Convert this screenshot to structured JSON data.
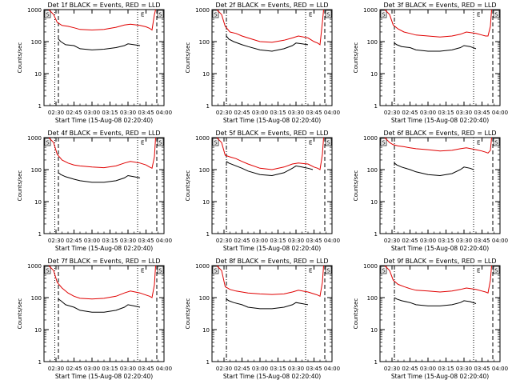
{
  "figure": {
    "xlabel": "Start Time (15-Aug-08 02:20:40)",
    "ylabel": "Counts/sec",
    "x_ticks": [
      "02:30",
      "02:45",
      "03:00",
      "03:15",
      "03:30",
      "03:45",
      "04:00"
    ],
    "x_tick_minutes": [
      10,
      25,
      40,
      55,
      70,
      85,
      100
    ],
    "x_range_minutes": [
      0,
      100
    ],
    "y_ticks": [
      "1",
      "10",
      "100",
      "1000"
    ],
    "y_range": [
      1,
      1000
    ],
    "y_scale": "log",
    "colors": {
      "events": "#000000",
      "lld": "#e00000",
      "axes": "#000000"
    },
    "marker_labels": [
      "S",
      "E",
      "S"
    ]
  },
  "chart_data": [
    {
      "type": "line",
      "title": "Det 1f BLACK = Events, RED = LLD",
      "markers": {
        "dotted": [
          9,
          78
        ],
        "dashed": [
          12,
          94
        ],
        "dashdot": []
      },
      "series": [
        {
          "name": "Events",
          "x": [
            12,
            14,
            18,
            25,
            30,
            40,
            50,
            60,
            67,
            70,
            75,
            80
          ],
          "y": [
            120,
            100,
            80,
            75,
            60,
            55,
            58,
            65,
            75,
            85,
            80,
            75
          ]
        },
        {
          "name": "LLD",
          "x": [
            4,
            8,
            11,
            15,
            20,
            25,
            30,
            40,
            50,
            60,
            67,
            72,
            80,
            85,
            88,
            90,
            92,
            93
          ],
          "y": [
            1000,
            700,
            400,
            320,
            300,
            270,
            240,
            230,
            240,
            280,
            330,
            350,
            320,
            290,
            260,
            230,
            700,
            1000
          ]
        }
      ]
    },
    {
      "type": "line",
      "title": "Det 2f BLACK = Events, RED = LLD",
      "markers": {
        "dotted": [
          78
        ],
        "dashed": [
          94
        ],
        "dashdot": [
          12
        ]
      },
      "series": [
        {
          "name": "Events",
          "x": [
            12,
            14,
            18,
            25,
            30,
            40,
            50,
            60,
            67,
            70,
            75,
            80
          ],
          "y": [
            150,
            120,
            100,
            80,
            70,
            55,
            50,
            60,
            75,
            90,
            85,
            80
          ]
        },
        {
          "name": "LLD",
          "x": [
            4,
            8,
            11,
            15,
            20,
            25,
            30,
            40,
            50,
            60,
            67,
            72,
            80,
            85,
            88,
            90,
            92,
            93
          ],
          "y": [
            1000,
            700,
            300,
            200,
            180,
            150,
            130,
            100,
            95,
            110,
            130,
            150,
            130,
            100,
            90,
            80,
            400,
            1000
          ]
        }
      ]
    },
    {
      "type": "line",
      "title": "Det 3f BLACK = Events, RED = LLD",
      "markers": {
        "dotted": [
          78
        ],
        "dashed": [
          94
        ],
        "dashdot": [
          12
        ]
      },
      "series": [
        {
          "name": "Events",
          "x": [
            12,
            14,
            18,
            25,
            30,
            40,
            50,
            60,
            67,
            70,
            75,
            80
          ],
          "y": [
            90,
            80,
            70,
            65,
            55,
            50,
            50,
            55,
            65,
            75,
            70,
            60
          ]
        },
        {
          "name": "LLD",
          "x": [
            4,
            8,
            11,
            15,
            20,
            25,
            30,
            40,
            50,
            60,
            67,
            72,
            80,
            85,
            88,
            90,
            92,
            93
          ],
          "y": [
            1000,
            700,
            330,
            250,
            200,
            180,
            160,
            150,
            140,
            150,
            170,
            200,
            180,
            160,
            150,
            150,
            300,
            1000
          ]
        }
      ]
    },
    {
      "type": "line",
      "title": "Det 4f BLACK = Events, RED = LLD",
      "markers": {
        "dotted": [
          9,
          78
        ],
        "dashed": [
          12,
          94
        ],
        "dashdot": []
      },
      "series": [
        {
          "name": "Events",
          "x": [
            12,
            14,
            18,
            25,
            30,
            40,
            50,
            60,
            67,
            70,
            75,
            80
          ],
          "y": [
            80,
            70,
            60,
            50,
            45,
            40,
            40,
            45,
            55,
            65,
            60,
            55
          ]
        },
        {
          "name": "LLD",
          "x": [
            4,
            8,
            11,
            15,
            20,
            25,
            30,
            40,
            50,
            60,
            67,
            72,
            80,
            85,
            88,
            90,
            92,
            93
          ],
          "y": [
            1000,
            700,
            300,
            200,
            160,
            140,
            130,
            120,
            115,
            130,
            160,
            180,
            160,
            140,
            120,
            110,
            250,
            1000
          ]
        }
      ]
    },
    {
      "type": "line",
      "title": "Det 5f BLACK = Events, RED = LLD",
      "markers": {
        "dotted": [
          78
        ],
        "dashed": [
          94
        ],
        "dashdot": [
          12
        ]
      },
      "series": [
        {
          "name": "Events",
          "x": [
            12,
            14,
            18,
            25,
            30,
            40,
            50,
            60,
            67,
            70,
            75,
            80,
            84
          ],
          "y": [
            180,
            160,
            140,
            110,
            90,
            70,
            65,
            80,
            110,
            130,
            120,
            110,
            100
          ]
        },
        {
          "name": "LLD",
          "x": [
            4,
            8,
            11,
            15,
            20,
            25,
            30,
            40,
            50,
            60,
            67,
            72,
            80,
            85,
            88,
            90,
            92,
            93
          ],
          "y": [
            1000,
            700,
            280,
            250,
            220,
            180,
            150,
            110,
            100,
            120,
            150,
            160,
            150,
            120,
            110,
            100,
            300,
            1000
          ]
        }
      ]
    },
    {
      "type": "line",
      "title": "Det 6f BLACK = Events, RED = LLD",
      "markers": {
        "dotted": [
          78
        ],
        "dashed": [
          94
        ],
        "dashdot": [
          12
        ]
      },
      "series": [
        {
          "name": "Events",
          "x": [
            12,
            14,
            18,
            25,
            30,
            40,
            50,
            60,
            67,
            70,
            75,
            78
          ],
          "y": [
            160,
            140,
            120,
            100,
            85,
            70,
            65,
            75,
            100,
            120,
            110,
            100
          ]
        },
        {
          "name": "LLD",
          "x": [
            4,
            8,
            11,
            15,
            20,
            25,
            30,
            40,
            50,
            60,
            67,
            72,
            80,
            85,
            88,
            90,
            92,
            93
          ],
          "y": [
            1000,
            700,
            600,
            550,
            520,
            480,
            450,
            420,
            380,
            400,
            450,
            480,
            420,
            380,
            350,
            330,
            400,
            1000
          ]
        }
      ]
    },
    {
      "type": "line",
      "title": "Det 7f BLACK = Events, RED = LLD",
      "markers": {
        "dotted": [
          9,
          78
        ],
        "dashed": [
          12,
          94
        ],
        "dashdot": []
      },
      "series": [
        {
          "name": "Events",
          "x": [
            12,
            14,
            18,
            25,
            30,
            40,
            50,
            60,
            67,
            70,
            75,
            80
          ],
          "y": [
            90,
            80,
            60,
            50,
            40,
            35,
            35,
            40,
            50,
            60,
            55,
            50
          ]
        },
        {
          "name": "LLD",
          "x": [
            4,
            8,
            11,
            15,
            20,
            25,
            30,
            40,
            50,
            60,
            67,
            72,
            80,
            85,
            88,
            90,
            92,
            93
          ],
          "y": [
            1000,
            700,
            300,
            200,
            140,
            110,
            95,
            90,
            95,
            110,
            140,
            160,
            140,
            120,
            110,
            100,
            250,
            1000
          ]
        }
      ]
    },
    {
      "type": "line",
      "title": "Det 8f BLACK = Events, RED = LLD",
      "markers": {
        "dotted": [
          78
        ],
        "dashed": [
          94
        ],
        "dashdot": [
          12
        ]
      },
      "series": [
        {
          "name": "Events",
          "x": [
            12,
            14,
            18,
            25,
            30,
            40,
            50,
            60,
            67,
            70,
            75,
            80
          ],
          "y": [
            90,
            80,
            70,
            60,
            50,
            45,
            45,
            50,
            60,
            70,
            65,
            60
          ]
        },
        {
          "name": "LLD",
          "x": [
            4,
            8,
            11,
            15,
            20,
            25,
            30,
            40,
            50,
            60,
            67,
            72,
            80,
            85,
            88,
            90,
            92,
            93
          ],
          "y": [
            1000,
            700,
            220,
            180,
            160,
            150,
            140,
            130,
            125,
            130,
            150,
            170,
            150,
            130,
            120,
            110,
            300,
            1000
          ]
        }
      ]
    },
    {
      "type": "line",
      "title": "Det 9f BLACK = Events, RED = LLD",
      "markers": {
        "dotted": [
          78
        ],
        "dashed": [
          94
        ],
        "dashdot": [
          12
        ]
      },
      "series": [
        {
          "name": "Events",
          "x": [
            12,
            14,
            18,
            25,
            30,
            40,
            50,
            60,
            67,
            70,
            75,
            80
          ],
          "y": [
            100,
            90,
            80,
            70,
            60,
            55,
            55,
            60,
            70,
            80,
            75,
            65
          ]
        },
        {
          "name": "LLD",
          "x": [
            4,
            8,
            11,
            15,
            20,
            25,
            30,
            40,
            50,
            60,
            67,
            72,
            80,
            85,
            88,
            90,
            92,
            93
          ],
          "y": [
            1000,
            700,
            350,
            260,
            220,
            190,
            170,
            160,
            150,
            160,
            180,
            200,
            180,
            160,
            150,
            140,
            350,
            1000
          ]
        }
      ]
    }
  ]
}
